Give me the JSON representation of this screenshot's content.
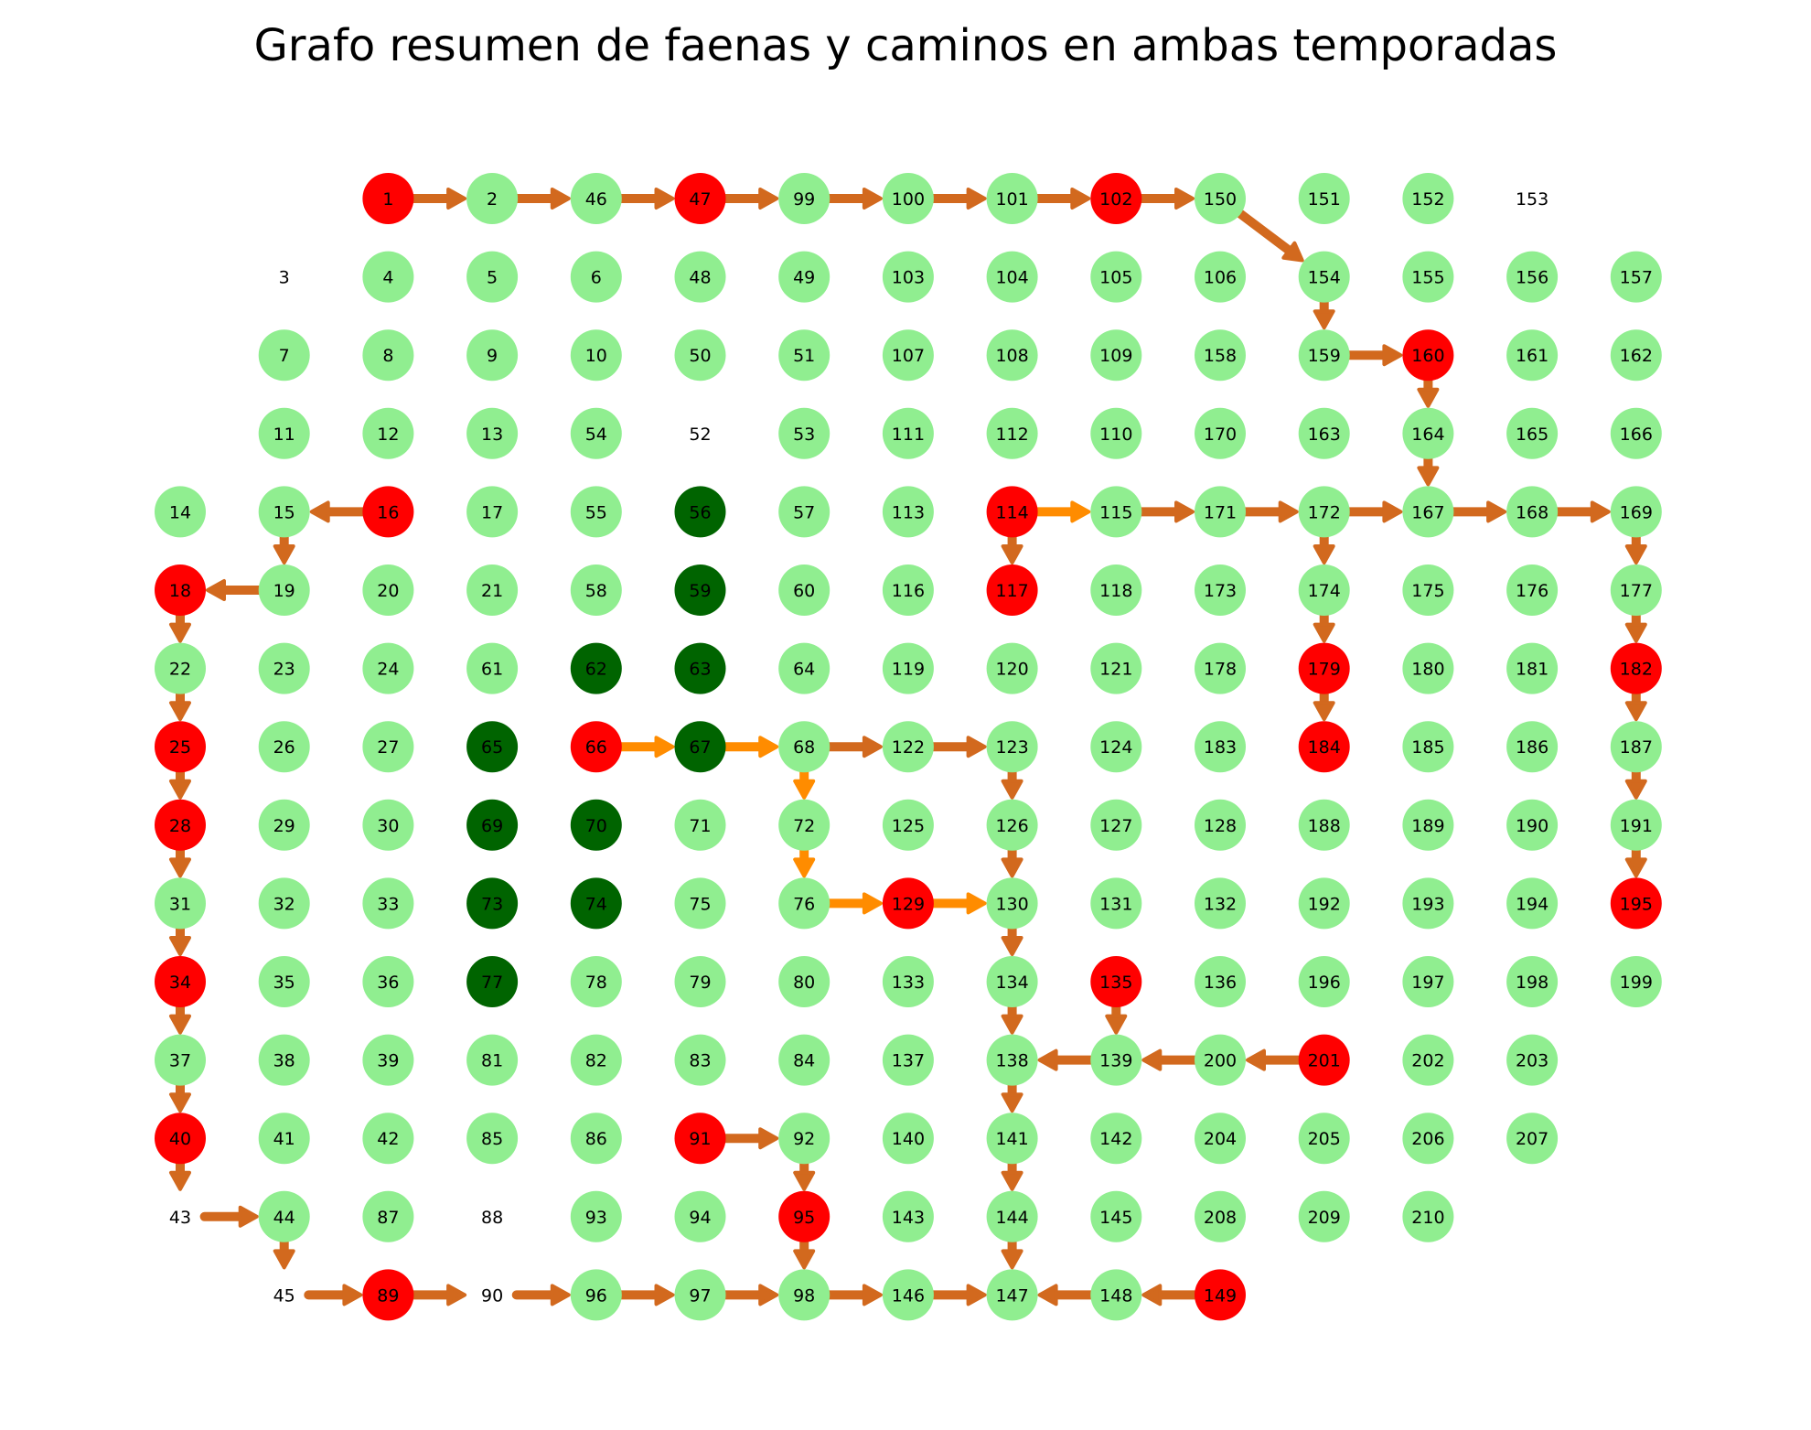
{
  "title": "Grafo resumen de faenas y caminos en ambas temporadas",
  "colors": {
    "normal": "#90ee90",
    "highlight": "#ff0000",
    "dark": "#006400",
    "edge": "#d2691e",
    "edge_alt": "#ff8c00",
    "label": "#000000"
  },
  "rows": [
    [
      "",
      "",
      "1",
      "2",
      "46",
      "47",
      "99",
      "100",
      "101",
      "102",
      "150",
      "151",
      "152",
      "153"
    ],
    [
      "",
      "3",
      "4",
      "5",
      "6",
      "48",
      "49",
      "103",
      "104",
      "105",
      "106",
      "154",
      "155",
      "156",
      "157"
    ],
    [
      "",
      "7",
      "8",
      "9",
      "10",
      "50",
      "51",
      "107",
      "108",
      "109",
      "158",
      "159",
      "160",
      "161",
      "162"
    ],
    [
      "",
      "11",
      "12",
      "13",
      "54",
      "52",
      "53",
      "111",
      "112",
      "110",
      "170",
      "163",
      "164",
      "165",
      "166"
    ],
    [
      "14",
      "15",
      "16",
      "17",
      "55",
      "56",
      "57",
      "113",
      "114",
      "115",
      "171",
      "172",
      "167",
      "168",
      "169"
    ],
    [
      "18",
      "19",
      "20",
      "21",
      "58",
      "59",
      "60",
      "116",
      "117",
      "118",
      "173",
      "174",
      "175",
      "176",
      "177"
    ],
    [
      "22",
      "23",
      "24",
      "61",
      "62",
      "63",
      "64",
      "119",
      "120",
      "121",
      "178",
      "179",
      "180",
      "181",
      "182"
    ],
    [
      "25",
      "26",
      "27",
      "65",
      "66",
      "67",
      "68",
      "122",
      "123",
      "124",
      "183",
      "184",
      "185",
      "186",
      "187"
    ],
    [
      "28",
      "29",
      "30",
      "69",
      "70",
      "71",
      "72",
      "125",
      "126",
      "127",
      "128",
      "188",
      "189",
      "190",
      "191"
    ],
    [
      "31",
      "32",
      "33",
      "73",
      "74",
      "75",
      "76",
      "129",
      "130",
      "131",
      "132",
      "192",
      "193",
      "194",
      "195"
    ],
    [
      "34",
      "35",
      "36",
      "77",
      "78",
      "79",
      "80",
      "133",
      "134",
      "135",
      "136",
      "196",
      "197",
      "198",
      "199"
    ],
    [
      "37",
      "38",
      "39",
      "81",
      "82",
      "83",
      "84",
      "137",
      "138",
      "139",
      "200",
      "201",
      "202",
      "203"
    ],
    [
      "40",
      "41",
      "42",
      "85",
      "86",
      "91",
      "92",
      "140",
      "141",
      "142",
      "204",
      "205",
      "206",
      "207"
    ],
    [
      "43",
      "44",
      "87",
      "88",
      "93",
      "94",
      "95",
      "143",
      "144",
      "145",
      "208",
      "209",
      "210"
    ],
    [
      "",
      "45",
      "89",
      "90",
      "96",
      "97",
      "98",
      "146",
      "147",
      "148",
      "149"
    ]
  ],
  "highlight_nodes": [
    "1",
    "47",
    "102",
    "16",
    "114",
    "160",
    "18",
    "117",
    "25",
    "66",
    "179",
    "182",
    "28",
    "184",
    "34",
    "129",
    "195",
    "135",
    "40",
    "91",
    "201",
    "95",
    "89",
    "149"
  ],
  "dark_nodes": [
    "56",
    "59",
    "62",
    "63",
    "65",
    "67",
    "69",
    "70",
    "73",
    "74",
    "77"
  ],
  "unstyled_nodes": [
    "3",
    "52",
    "43",
    "45",
    "88",
    "90",
    "153"
  ],
  "edges": [
    {
      "from": "1",
      "to": "2"
    },
    {
      "from": "2",
      "to": "46"
    },
    {
      "from": "46",
      "to": "47"
    },
    {
      "from": "47",
      "to": "99"
    },
    {
      "from": "99",
      "to": "100"
    },
    {
      "from": "100",
      "to": "101"
    },
    {
      "from": "101",
      "to": "102"
    },
    {
      "from": "102",
      "to": "150"
    },
    {
      "from": "150",
      "to": "154"
    },
    {
      "from": "154",
      "to": "159"
    },
    {
      "from": "159",
      "to": "160"
    },
    {
      "from": "160",
      "to": "164"
    },
    {
      "from": "164",
      "to": "167"
    },
    {
      "from": "16",
      "to": "15"
    },
    {
      "from": "15",
      "to": "19"
    },
    {
      "from": "19",
      "to": "18"
    },
    {
      "from": "18",
      "to": "22"
    },
    {
      "from": "22",
      "to": "25"
    },
    {
      "from": "25",
      "to": "28"
    },
    {
      "from": "28",
      "to": "31"
    },
    {
      "from": "31",
      "to": "34"
    },
    {
      "from": "34",
      "to": "37"
    },
    {
      "from": "37",
      "to": "40"
    },
    {
      "from": "40",
      "to": "43"
    },
    {
      "from": "43",
      "to": "44"
    },
    {
      "from": "44",
      "to": "45"
    },
    {
      "from": "45",
      "to": "89"
    },
    {
      "from": "89",
      "to": "90"
    },
    {
      "from": "90",
      "to": "96"
    },
    {
      "from": "96",
      "to": "97"
    },
    {
      "from": "97",
      "to": "98"
    },
    {
      "from": "98",
      "to": "146"
    },
    {
      "from": "146",
      "to": "147"
    },
    {
      "from": "149",
      "to": "148"
    },
    {
      "from": "148",
      "to": "147"
    },
    {
      "from": "114",
      "to": "115",
      "alt": true
    },
    {
      "from": "114",
      "to": "117"
    },
    {
      "from": "115",
      "to": "171"
    },
    {
      "from": "171",
      "to": "172"
    },
    {
      "from": "172",
      "to": "167"
    },
    {
      "from": "167",
      "to": "168"
    },
    {
      "from": "168",
      "to": "169"
    },
    {
      "from": "169",
      "to": "177"
    },
    {
      "from": "177",
      "to": "182"
    },
    {
      "from": "182",
      "to": "187"
    },
    {
      "from": "187",
      "to": "191"
    },
    {
      "from": "191",
      "to": "195"
    },
    {
      "from": "172",
      "to": "174"
    },
    {
      "from": "174",
      "to": "179"
    },
    {
      "from": "179",
      "to": "184"
    },
    {
      "from": "66",
      "to": "67",
      "alt": true
    },
    {
      "from": "67",
      "to": "68",
      "alt": true
    },
    {
      "from": "68",
      "to": "122"
    },
    {
      "from": "68",
      "to": "72",
      "alt": true
    },
    {
      "from": "72",
      "to": "76",
      "alt": true
    },
    {
      "from": "76",
      "to": "129",
      "alt": true
    },
    {
      "from": "129",
      "to": "130",
      "alt": true
    },
    {
      "from": "122",
      "to": "123"
    },
    {
      "from": "123",
      "to": "126"
    },
    {
      "from": "126",
      "to": "130"
    },
    {
      "from": "130",
      "to": "134"
    },
    {
      "from": "134",
      "to": "138"
    },
    {
      "from": "138",
      "to": "141"
    },
    {
      "from": "141",
      "to": "144"
    },
    {
      "from": "144",
      "to": "147"
    },
    {
      "from": "135",
      "to": "139"
    },
    {
      "from": "139",
      "to": "138"
    },
    {
      "from": "201",
      "to": "200"
    },
    {
      "from": "200",
      "to": "139"
    },
    {
      "from": "91",
      "to": "92"
    },
    {
      "from": "92",
      "to": "95"
    },
    {
      "from": "95",
      "to": "98"
    }
  ]
}
